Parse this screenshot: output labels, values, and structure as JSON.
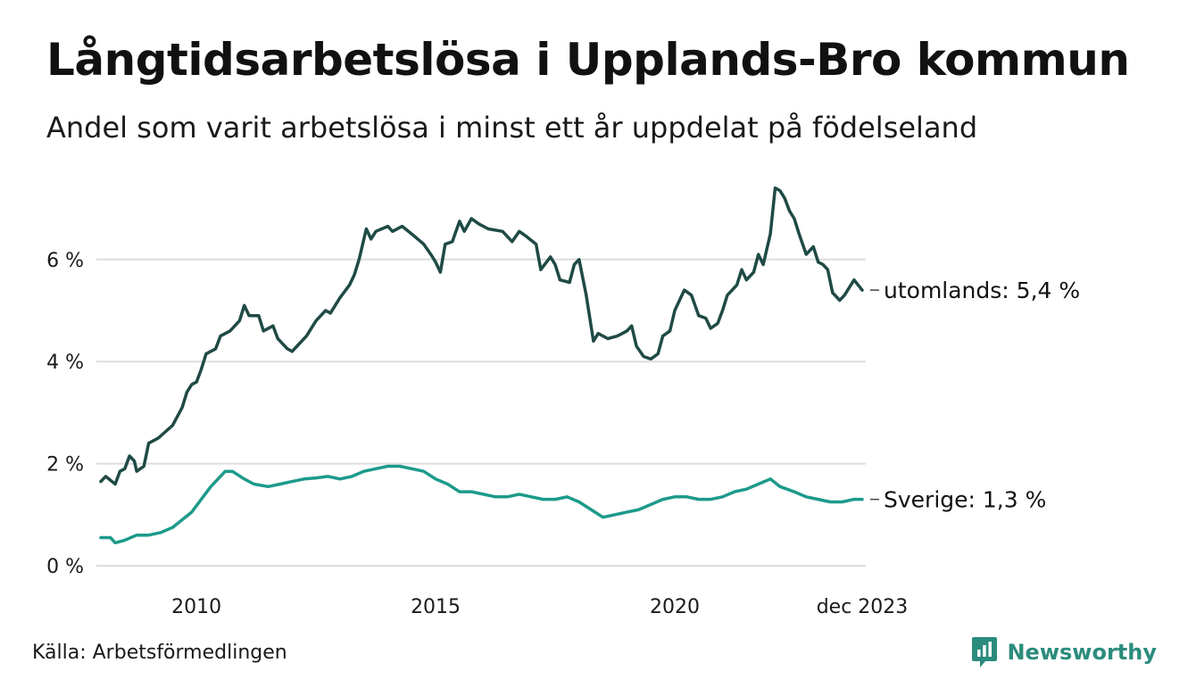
{
  "title": "Långtidsarbetslösa i Upplands-Bro kommun",
  "subtitle": "Andel som varit arbetslösa i minst ett år uppdelat på födelseland",
  "source": "Källa: Arbetsförmedlingen",
  "brand": "Newsworthy",
  "colors": {
    "utomlands": "#1f4a45",
    "sverige": "#1c9a8a",
    "grid": "#dddddd",
    "brand": "#2b8c7d"
  },
  "chart_data": {
    "type": "line",
    "title": "Långtidsarbetslösa i Upplands-Bro kommun",
    "xlabel": "",
    "ylabel": "",
    "ylim": [
      0,
      7.5
    ],
    "xlim": [
      2008.0,
      2023.92
    ],
    "grid": true,
    "y_ticks": [
      0,
      2,
      4,
      6
    ],
    "y_tick_labels": [
      "0 %",
      "2 %",
      "4 %",
      "6 %"
    ],
    "x_ticks": [
      2010,
      2015,
      2020,
      2023.92
    ],
    "x_tick_labels": [
      "2010",
      "2015",
      "2020",
      "dec 2023"
    ],
    "series": [
      {
        "name": "utomlands",
        "end_label": "utomlands: 5,4 %",
        "color": "#1f4a45",
        "points": [
          [
            2008.0,
            1.65
          ],
          [
            2008.1,
            1.75
          ],
          [
            2008.3,
            1.6
          ],
          [
            2008.4,
            1.85
          ],
          [
            2008.5,
            1.9
          ],
          [
            2008.6,
            2.15
          ],
          [
            2008.7,
            2.05
          ],
          [
            2008.75,
            1.85
          ],
          [
            2008.9,
            1.95
          ],
          [
            2009.0,
            2.4
          ],
          [
            2009.2,
            2.5
          ],
          [
            2009.5,
            2.75
          ],
          [
            2009.7,
            3.1
          ],
          [
            2009.8,
            3.4
          ],
          [
            2009.9,
            3.55
          ],
          [
            2010.0,
            3.6
          ],
          [
            2010.1,
            3.85
          ],
          [
            2010.2,
            4.15
          ],
          [
            2010.4,
            4.25
          ],
          [
            2010.5,
            4.5
          ],
          [
            2010.7,
            4.6
          ],
          [
            2010.9,
            4.8
          ],
          [
            2011.0,
            5.1
          ],
          [
            2011.1,
            4.9
          ],
          [
            2011.3,
            4.9
          ],
          [
            2011.4,
            4.6
          ],
          [
            2011.6,
            4.7
          ],
          [
            2011.7,
            4.45
          ],
          [
            2011.9,
            4.25
          ],
          [
            2012.0,
            4.2
          ],
          [
            2012.1,
            4.3
          ],
          [
            2012.3,
            4.5
          ],
          [
            2012.5,
            4.8
          ],
          [
            2012.7,
            5.0
          ],
          [
            2012.8,
            4.95
          ],
          [
            2013.0,
            5.25
          ],
          [
            2013.2,
            5.5
          ],
          [
            2013.3,
            5.7
          ],
          [
            2013.4,
            6.0
          ],
          [
            2013.55,
            6.6
          ],
          [
            2013.65,
            6.4
          ],
          [
            2013.75,
            6.55
          ],
          [
            2014.0,
            6.65
          ],
          [
            2014.1,
            6.55
          ],
          [
            2014.3,
            6.65
          ],
          [
            2014.5,
            6.5
          ],
          [
            2014.75,
            6.3
          ],
          [
            2014.9,
            6.1
          ],
          [
            2015.0,
            5.95
          ],
          [
            2015.1,
            5.75
          ],
          [
            2015.2,
            6.3
          ],
          [
            2015.35,
            6.35
          ],
          [
            2015.5,
            6.75
          ],
          [
            2015.6,
            6.55
          ],
          [
            2015.75,
            6.8
          ],
          [
            2015.9,
            6.7
          ],
          [
            2016.1,
            6.6
          ],
          [
            2016.4,
            6.55
          ],
          [
            2016.6,
            6.35
          ],
          [
            2016.75,
            6.55
          ],
          [
            2016.9,
            6.45
          ],
          [
            2017.1,
            6.3
          ],
          [
            2017.2,
            5.8
          ],
          [
            2017.4,
            6.05
          ],
          [
            2017.5,
            5.9
          ],
          [
            2017.6,
            5.6
          ],
          [
            2017.8,
            5.55
          ],
          [
            2017.9,
            5.9
          ],
          [
            2018.0,
            6.0
          ],
          [
            2018.15,
            5.3
          ],
          [
            2018.3,
            4.4
          ],
          [
            2018.4,
            4.55
          ],
          [
            2018.6,
            4.45
          ],
          [
            2018.8,
            4.5
          ],
          [
            2019.0,
            4.6
          ],
          [
            2019.1,
            4.7
          ],
          [
            2019.2,
            4.3
          ],
          [
            2019.35,
            4.1
          ],
          [
            2019.5,
            4.05
          ],
          [
            2019.65,
            4.15
          ],
          [
            2019.75,
            4.5
          ],
          [
            2019.9,
            4.6
          ],
          [
            2020.0,
            5.0
          ],
          [
            2020.2,
            5.4
          ],
          [
            2020.35,
            5.3
          ],
          [
            2020.5,
            4.9
          ],
          [
            2020.65,
            4.85
          ],
          [
            2020.75,
            4.65
          ],
          [
            2020.9,
            4.75
          ],
          [
            2021.0,
            5.0
          ],
          [
            2021.1,
            5.3
          ],
          [
            2021.3,
            5.5
          ],
          [
            2021.4,
            5.8
          ],
          [
            2021.5,
            5.6
          ],
          [
            2021.65,
            5.75
          ],
          [
            2021.75,
            6.1
          ],
          [
            2021.85,
            5.9
          ],
          [
            2022.0,
            6.5
          ],
          [
            2022.1,
            7.4
          ],
          [
            2022.2,
            7.35
          ],
          [
            2022.3,
            7.2
          ],
          [
            2022.4,
            6.95
          ],
          [
            2022.5,
            6.8
          ],
          [
            2022.6,
            6.5
          ],
          [
            2022.75,
            6.1
          ],
          [
            2022.9,
            6.25
          ],
          [
            2023.0,
            5.95
          ],
          [
            2023.1,
            5.9
          ],
          [
            2023.2,
            5.8
          ],
          [
            2023.3,
            5.35
          ],
          [
            2023.45,
            5.2
          ],
          [
            2023.55,
            5.3
          ],
          [
            2023.65,
            5.45
          ],
          [
            2023.75,
            5.6
          ],
          [
            2023.92,
            5.4
          ]
        ]
      },
      {
        "name": "Sverige",
        "end_label": "Sverige: 1,3 %",
        "color": "#1c9a8a",
        "points": [
          [
            2008.0,
            0.55
          ],
          [
            2008.2,
            0.55
          ],
          [
            2008.3,
            0.45
          ],
          [
            2008.5,
            0.5
          ],
          [
            2008.75,
            0.6
          ],
          [
            2009.0,
            0.6
          ],
          [
            2009.25,
            0.65
          ],
          [
            2009.5,
            0.75
          ],
          [
            2009.7,
            0.9
          ],
          [
            2009.9,
            1.05
          ],
          [
            2010.1,
            1.3
          ],
          [
            2010.3,
            1.55
          ],
          [
            2010.5,
            1.75
          ],
          [
            2010.6,
            1.85
          ],
          [
            2010.75,
            1.85
          ],
          [
            2011.0,
            1.7
          ],
          [
            2011.2,
            1.6
          ],
          [
            2011.5,
            1.55
          ],
          [
            2011.75,
            1.6
          ],
          [
            2012.0,
            1.65
          ],
          [
            2012.25,
            1.7
          ],
          [
            2012.5,
            1.72
          ],
          [
            2012.75,
            1.75
          ],
          [
            2013.0,
            1.7
          ],
          [
            2013.25,
            1.75
          ],
          [
            2013.5,
            1.85
          ],
          [
            2013.75,
            1.9
          ],
          [
            2014.0,
            1.95
          ],
          [
            2014.25,
            1.95
          ],
          [
            2014.5,
            1.9
          ],
          [
            2014.75,
            1.85
          ],
          [
            2015.0,
            1.7
          ],
          [
            2015.25,
            1.6
          ],
          [
            2015.5,
            1.45
          ],
          [
            2015.75,
            1.45
          ],
          [
            2016.0,
            1.4
          ],
          [
            2016.25,
            1.35
          ],
          [
            2016.5,
            1.35
          ],
          [
            2016.75,
            1.4
          ],
          [
            2017.0,
            1.35
          ],
          [
            2017.25,
            1.3
          ],
          [
            2017.5,
            1.3
          ],
          [
            2017.75,
            1.35
          ],
          [
            2018.0,
            1.25
          ],
          [
            2018.25,
            1.1
          ],
          [
            2018.5,
            0.95
          ],
          [
            2018.75,
            1.0
          ],
          [
            2019.0,
            1.05
          ],
          [
            2019.25,
            1.1
          ],
          [
            2019.5,
            1.2
          ],
          [
            2019.75,
            1.3
          ],
          [
            2020.0,
            1.35
          ],
          [
            2020.25,
            1.35
          ],
          [
            2020.5,
            1.3
          ],
          [
            2020.75,
            1.3
          ],
          [
            2021.0,
            1.35
          ],
          [
            2021.25,
            1.45
          ],
          [
            2021.5,
            1.5
          ],
          [
            2021.75,
            1.6
          ],
          [
            2022.0,
            1.7
          ],
          [
            2022.2,
            1.55
          ],
          [
            2022.5,
            1.45
          ],
          [
            2022.75,
            1.35
          ],
          [
            2023.0,
            1.3
          ],
          [
            2023.25,
            1.25
          ],
          [
            2023.5,
            1.25
          ],
          [
            2023.75,
            1.3
          ],
          [
            2023.92,
            1.3
          ]
        ]
      }
    ]
  }
}
